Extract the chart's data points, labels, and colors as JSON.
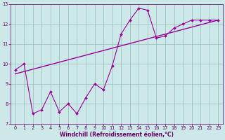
{
  "x": [
    0,
    1,
    2,
    3,
    4,
    5,
    6,
    7,
    8,
    9,
    10,
    11,
    12,
    13,
    14,
    15,
    16,
    17,
    18,
    19,
    20,
    21,
    22,
    23
  ],
  "y_line": [
    9.7,
    10.0,
    7.5,
    7.7,
    8.6,
    7.6,
    8.0,
    7.5,
    8.3,
    9.0,
    8.7,
    9.9,
    11.5,
    12.2,
    12.8,
    12.7,
    11.3,
    11.4,
    11.8,
    12.0,
    12.2,
    12.2,
    12.2,
    12.2
  ],
  "trend_x": [
    0,
    23
  ],
  "trend_y": [
    9.5,
    12.2
  ],
  "line_color": "#990099",
  "bg_color": "#cce8e8",
  "grid_color": "#99bbbb",
  "tick_color": "#660066",
  "xlabel": "Windchill (Refroidissement éolien,°C)",
  "xlim": [
    -0.5,
    23.5
  ],
  "ylim": [
    7,
    13
  ],
  "yticks": [
    7,
    8,
    9,
    10,
    11,
    12,
    13
  ],
  "xticks": [
    0,
    1,
    2,
    3,
    4,
    5,
    6,
    7,
    8,
    9,
    10,
    11,
    12,
    13,
    14,
    15,
    16,
    17,
    18,
    19,
    20,
    21,
    22,
    23
  ],
  "xlabel_fontsize": 5.5,
  "tick_fontsize": 4.8
}
